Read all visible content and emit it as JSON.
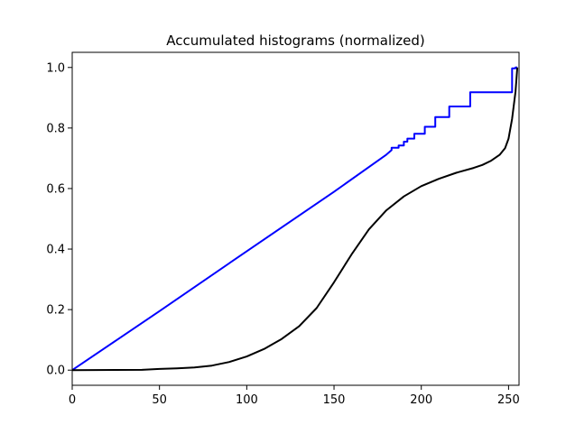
{
  "chart_data": {
    "type": "line",
    "title": "Accumulated histograms (normalized)",
    "xlabel": "",
    "ylabel": "",
    "xlim": [
      0,
      256
    ],
    "ylim": [
      -0.05,
      1.05
    ],
    "xticks": [
      0,
      50,
      100,
      150,
      200,
      250
    ],
    "yticks": [
      0.0,
      0.2,
      0.4,
      0.6,
      0.8,
      1.0
    ],
    "xtick_labels": [
      "0",
      "50",
      "100",
      "150",
      "200",
      "250"
    ],
    "ytick_labels": [
      "0.0",
      "0.2",
      "0.4",
      "0.6",
      "0.8",
      "1.0"
    ],
    "grid": false,
    "series": [
      {
        "color": "#0000ff",
        "points": [
          [
            0,
            0.0
          ],
          [
            50,
            0.195
          ],
          [
            100,
            0.393
          ],
          [
            150,
            0.589
          ],
          [
            180,
            0.712
          ],
          [
            183,
            0.727
          ],
          [
            183,
            0.735
          ],
          [
            187,
            0.735
          ],
          [
            187,
            0.742
          ],
          [
            190,
            0.742
          ],
          [
            190,
            0.755
          ],
          [
            192,
            0.755
          ],
          [
            192,
            0.765
          ],
          [
            196,
            0.765
          ],
          [
            196,
            0.781
          ],
          [
            202,
            0.781
          ],
          [
            202,
            0.804
          ],
          [
            208,
            0.804
          ],
          [
            208,
            0.836
          ],
          [
            216,
            0.836
          ],
          [
            216,
            0.871
          ],
          [
            228,
            0.871
          ],
          [
            228,
            0.918
          ],
          [
            252,
            0.918
          ],
          [
            252,
            0.997
          ],
          [
            254,
            0.997
          ],
          [
            254,
            1.0
          ],
          [
            255,
            1.0
          ]
        ]
      },
      {
        "color": "#000000",
        "points": [
          [
            0,
            0.0
          ],
          [
            40,
            0.001
          ],
          [
            50,
            0.004
          ],
          [
            60,
            0.006
          ],
          [
            70,
            0.009
          ],
          [
            80,
            0.015
          ],
          [
            90,
            0.027
          ],
          [
            100,
            0.045
          ],
          [
            110,
            0.07
          ],
          [
            120,
            0.103
          ],
          [
            130,
            0.145
          ],
          [
            140,
            0.205
          ],
          [
            150,
            0.29
          ],
          [
            160,
            0.382
          ],
          [
            170,
            0.465
          ],
          [
            180,
            0.528
          ],
          [
            190,
            0.574
          ],
          [
            200,
            0.608
          ],
          [
            210,
            0.632
          ],
          [
            220,
            0.652
          ],
          [
            230,
            0.668
          ],
          [
            235,
            0.678
          ],
          [
            240,
            0.692
          ],
          [
            245,
            0.712
          ],
          [
            248,
            0.733
          ],
          [
            250,
            0.765
          ],
          [
            252,
            0.83
          ],
          [
            254,
            0.92
          ],
          [
            255,
            1.0
          ]
        ]
      }
    ]
  }
}
